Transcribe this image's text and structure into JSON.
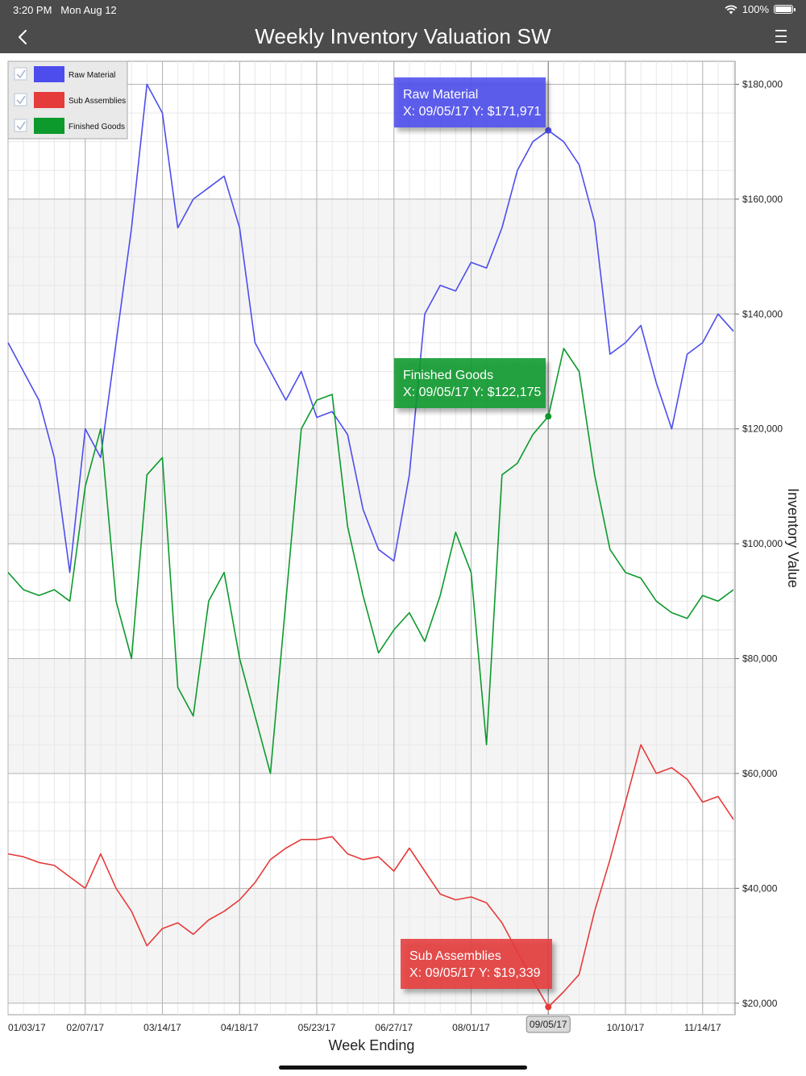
{
  "status_bar": {
    "time": "3:20 PM",
    "date": "Mon Aug 12",
    "battery": "100%",
    "wifi_icon": "wifi-icon",
    "battery_icon": "battery-icon"
  },
  "nav": {
    "title": "Weekly Inventory Valuation SW",
    "back_icon": "chevron-left-icon",
    "menu_icon": "hamburger-menu-icon"
  },
  "colors": {
    "raw": "#4d4dee",
    "sub": "#e63b3b",
    "fin": "#0c9a2c",
    "nav_bg": "#4b4b4b"
  },
  "chart_data": {
    "type": "line",
    "title": "Weekly Inventory Valuation SW",
    "xlabel": "Week Ending",
    "ylabel": "Inventory Value",
    "x_ticks": [
      "01/03/17",
      "02/07/17",
      "03/14/17",
      "04/18/17",
      "05/23/17",
      "06/27/17",
      "08/01/17",
      "09/05/17",
      "10/10/17",
      "11/14/17"
    ],
    "x_start": "01/03/17",
    "x_interval": "weekly",
    "y_ticks": [
      "$20,000",
      "$40,000",
      "$60,000",
      "$80,000",
      "$100,000",
      "$120,000",
      "$140,000",
      "$160,000",
      "$180,000"
    ],
    "ylim": [
      18000,
      184000
    ],
    "y_axis_position": "right",
    "grid": true,
    "legend_position": "top-left",
    "series": [
      {
        "name": "Raw Material",
        "color": "#4d4dee",
        "values": [
          135000,
          130000,
          125000,
          115000,
          95000,
          120000,
          115000,
          135000,
          155000,
          180000,
          175000,
          155000,
          160000,
          162000,
          164000,
          155000,
          135000,
          130000,
          125000,
          130000,
          122000,
          123000,
          119000,
          106000,
          99000,
          97000,
          112000,
          140000,
          145000,
          144000,
          149000,
          148000,
          155000,
          165000,
          170000,
          171971,
          170000,
          166000,
          156000,
          133000,
          135000,
          138000,
          128000,
          120000,
          133000,
          135000,
          140000,
          137000
        ]
      },
      {
        "name": "Sub Assemblies",
        "color": "#e63b3b",
        "values": [
          46000,
          45500,
          44500,
          44000,
          42000,
          40000,
          46000,
          40000,
          36000,
          30000,
          33000,
          34000,
          32000,
          34500,
          36000,
          38000,
          41000,
          45000,
          47000,
          48500,
          48500,
          49000,
          46000,
          45000,
          45500,
          43000,
          47000,
          43000,
          39000,
          38000,
          38500,
          37500,
          34000,
          29000,
          24000,
          19339,
          22000,
          25000,
          36000,
          45000,
          55000,
          65000,
          60000,
          61000,
          59000,
          55000,
          56000,
          52000
        ]
      },
      {
        "name": "Finished Goods",
        "color": "#0c9a2c",
        "values": [
          95000,
          92000,
          91000,
          92000,
          90000,
          110000,
          120000,
          90000,
          80000,
          112000,
          115000,
          75000,
          70000,
          90000,
          95000,
          80000,
          70000,
          60000,
          90000,
          120000,
          125000,
          126000,
          103000,
          91000,
          81000,
          85000,
          88000,
          83000,
          91000,
          102000,
          95000,
          65000,
          112000,
          114000,
          119000,
          122175,
          134000,
          130000,
          112000,
          99000,
          95000,
          94000,
          90000,
          88000,
          87000,
          91000,
          90000,
          92000
        ]
      }
    ],
    "crosshair": {
      "x": "09/05/17",
      "label": "09/05/17"
    },
    "tooltips": [
      {
        "series": "Raw Material",
        "title": "Raw Material",
        "text": "X: 09/05/17 Y: $171,971"
      },
      {
        "series": "Finished Goods",
        "title": "Finished Goods",
        "text": "X: 09/05/17 Y: $122,175"
      },
      {
        "series": "Sub Assemblies",
        "title": "Sub Assemblies",
        "text": "X: 09/05/17 Y: $19,339"
      }
    ]
  }
}
